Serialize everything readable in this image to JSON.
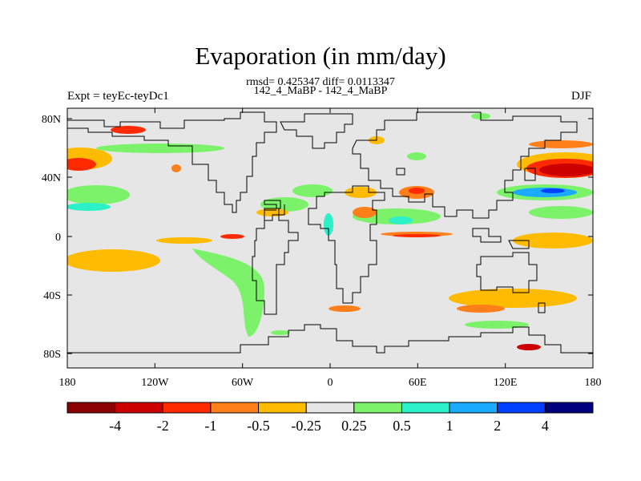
{
  "title": "Evaporation (in mm/day)",
  "stats": "rmsd= 0.425347 diff= 0.0113347",
  "case_label": "142_4_MaBP - 142_4_MaBP",
  "expt_label": "Expt = teyEc-teyDc1",
  "season": "DJF",
  "map": {
    "lon_ticks": [
      "180",
      "120W",
      "60W",
      "0",
      "60E",
      "120E",
      "180"
    ],
    "lat_ticks": [
      "80N",
      "40N",
      "0",
      "40S",
      "80S"
    ],
    "background_color": "#e6e6e6",
    "land_outline": "coastline"
  },
  "colorbar": {
    "colors": [
      "#8b0000",
      "#cc0000",
      "#ff2a00",
      "#ff7f1a",
      "#ffbb00",
      "#e6e6e6",
      "#7cf26b",
      "#2bf0c8",
      "#1aaaff",
      "#0040ff",
      "#00007f"
    ],
    "labels": [
      "-4",
      "-2",
      "-1",
      "-0.5",
      "-0.25",
      "0.25",
      "0.5",
      "1",
      "2",
      "4"
    ]
  }
}
